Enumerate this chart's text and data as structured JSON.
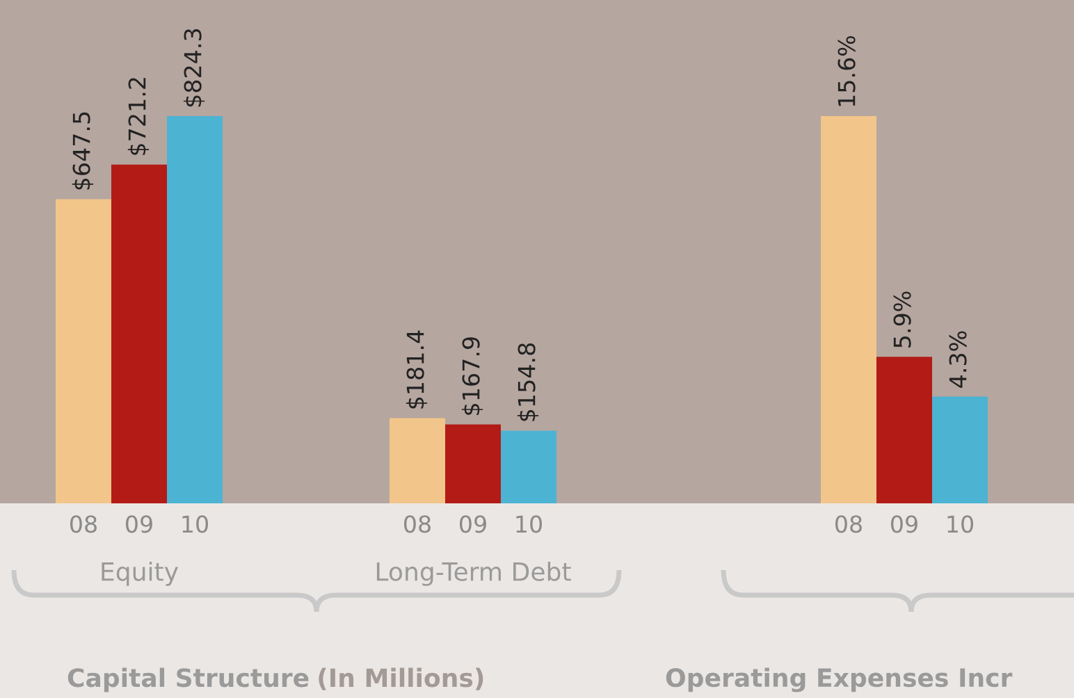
{
  "chart_data": [
    {
      "type": "bar",
      "title": "Capital Structure",
      "subtitle": "(In Millions)",
      "categories": [
        "Equity",
        "Long-Term Debt"
      ],
      "tick_labels": "x",
      "series": [
        {
          "name": "08",
          "color": "#f2c68a",
          "values": [
            647.5,
            181.4
          ],
          "value_labels": [
            "$647.5",
            "$181.4"
          ]
        },
        {
          "name": "09",
          "color": "#b31b17",
          "values": [
            721.2,
            167.9
          ],
          "value_labels": [
            "$721.2",
            "$167.9"
          ]
        },
        {
          "name": "10",
          "color": "#4db3d3",
          "values": [
            824.3,
            154.8
          ],
          "value_labels": [
            "$824.3",
            "$154.8"
          ]
        }
      ]
    },
    {
      "type": "bar",
      "title": "Operating Expenses Incr",
      "categories": [
        null
      ],
      "tick_labels": "x",
      "series": [
        {
          "name": "08",
          "color": "#f2c68a",
          "values": [
            15.6
          ],
          "value_labels": [
            "15.6%"
          ]
        },
        {
          "name": "09",
          "color": "#b31b17",
          "values": [
            5.9
          ],
          "value_labels": [
            "5.9%"
          ]
        },
        {
          "name": "10",
          "color": "#4db3d3",
          "values": [
            4.3
          ],
          "value_labels": [
            "4.3%"
          ]
        }
      ]
    }
  ]
}
